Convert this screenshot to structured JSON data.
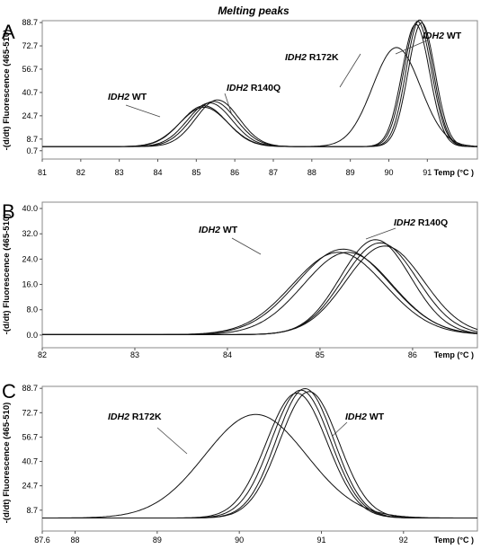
{
  "title": "Melting peaks",
  "chart_data": [
    {
      "type": "line",
      "panel": "A",
      "xlabel": "Temp (°C )",
      "ylabel": "-(d/dt) Fluorescence (465-510)",
      "xlim": [
        81,
        92.3
      ],
      "ylim": [
        -5,
        90
      ],
      "x_ticks": [
        "81",
        "82",
        "83",
        "84",
        "85",
        "86",
        "87",
        "88",
        "89",
        "90",
        "91"
      ],
      "y_ticks": [
        "88.7",
        "72.7",
        "56.7",
        "40.7",
        "24.7",
        "8.7",
        "0.7"
      ],
      "annotations": [
        {
          "text": "Melting peaks"
        },
        {
          "gene": "IDH2",
          "variant": "R172K"
        },
        {
          "gene": "IDH2",
          "variant": "WT"
        },
        {
          "gene": "IDH2",
          "variant": "R140Q"
        },
        {
          "gene": "IDH2",
          "variant": "WT"
        }
      ],
      "series": [
        {
          "peaks": [
            [
              85.2,
              28,
              0.6
            ],
            [
              90.7,
              84,
              0.36
            ]
          ]
        },
        {
          "peaks": [
            [
              85.35,
              30,
              0.58
            ],
            [
              90.75,
              86,
              0.36
            ]
          ]
        },
        {
          "peaks": [
            [
              85.45,
              31,
              0.58
            ],
            [
              90.8,
              87,
              0.35
            ]
          ]
        },
        {
          "peaks": [
            [
              85.55,
              32,
              0.56
            ],
            [
              90.85,
              85,
              0.35
            ]
          ]
        },
        {
          "peaks": [
            [
              85.2,
              27,
              0.62
            ],
            [
              90.2,
              68,
              0.62
            ]
          ]
        }
      ]
    },
    {
      "type": "line",
      "panel": "B",
      "xlabel": "Temp (°C )",
      "ylabel": "-(d/dt) Fluorescence (465-510)",
      "xlim": [
        82,
        86.7
      ],
      "ylim": [
        -4,
        42
      ],
      "x_ticks": [
        "82",
        "83",
        "84",
        "85",
        "86"
      ],
      "y_ticks": [
        "40.0",
        "32.0",
        "24.0",
        "16.0",
        "8.0",
        "0.0"
      ],
      "annotations": [
        {
          "gene": "IDH2",
          "variant": "WT"
        },
        {
          "gene": "IDH2",
          "variant": "R140Q"
        }
      ],
      "series": [
        {
          "peaks": [
            [
              85.2,
              26,
              0.5
            ]
          ]
        },
        {
          "peaks": [
            [
              85.25,
              27,
              0.5
            ]
          ]
        },
        {
          "peaks": [
            [
              85.3,
              26,
              0.48
            ]
          ]
        },
        {
          "peaks": [
            [
              85.6,
              30,
              0.38
            ]
          ]
        },
        {
          "peaks": [
            [
              85.65,
              29,
              0.4
            ]
          ]
        },
        {
          "peaks": [
            [
              85.7,
              28,
              0.42
            ]
          ]
        }
      ]
    },
    {
      "type": "line",
      "panel": "C",
      "xlabel": "Temp (°C )",
      "ylabel": "-(d/dt) Fluorescence (465-510)",
      "xlim": [
        87.6,
        92.9
      ],
      "ylim": [
        -5,
        90
      ],
      "x_ticks": [
        "87.6",
        "88",
        "89",
        "90",
        "91",
        "92"
      ],
      "y_ticks": [
        "88.7",
        "72.7",
        "56.7",
        "40.7",
        "24.7",
        "8.7"
      ],
      "annotations": [
        {
          "gene": "IDH2",
          "variant": "R172K"
        },
        {
          "gene": "IDH2",
          "variant": "WT"
        }
      ],
      "series": [
        {
          "peaks": [
            [
              90.7,
              82,
              0.37
            ]
          ]
        },
        {
          "peaks": [
            [
              90.75,
              84,
              0.36
            ]
          ]
        },
        {
          "peaks": [
            [
              90.8,
              85,
              0.35
            ]
          ]
        },
        {
          "peaks": [
            [
              90.85,
              83,
              0.36
            ]
          ]
        },
        {
          "peaks": [
            [
              90.2,
              68,
              0.62
            ]
          ]
        }
      ]
    }
  ]
}
